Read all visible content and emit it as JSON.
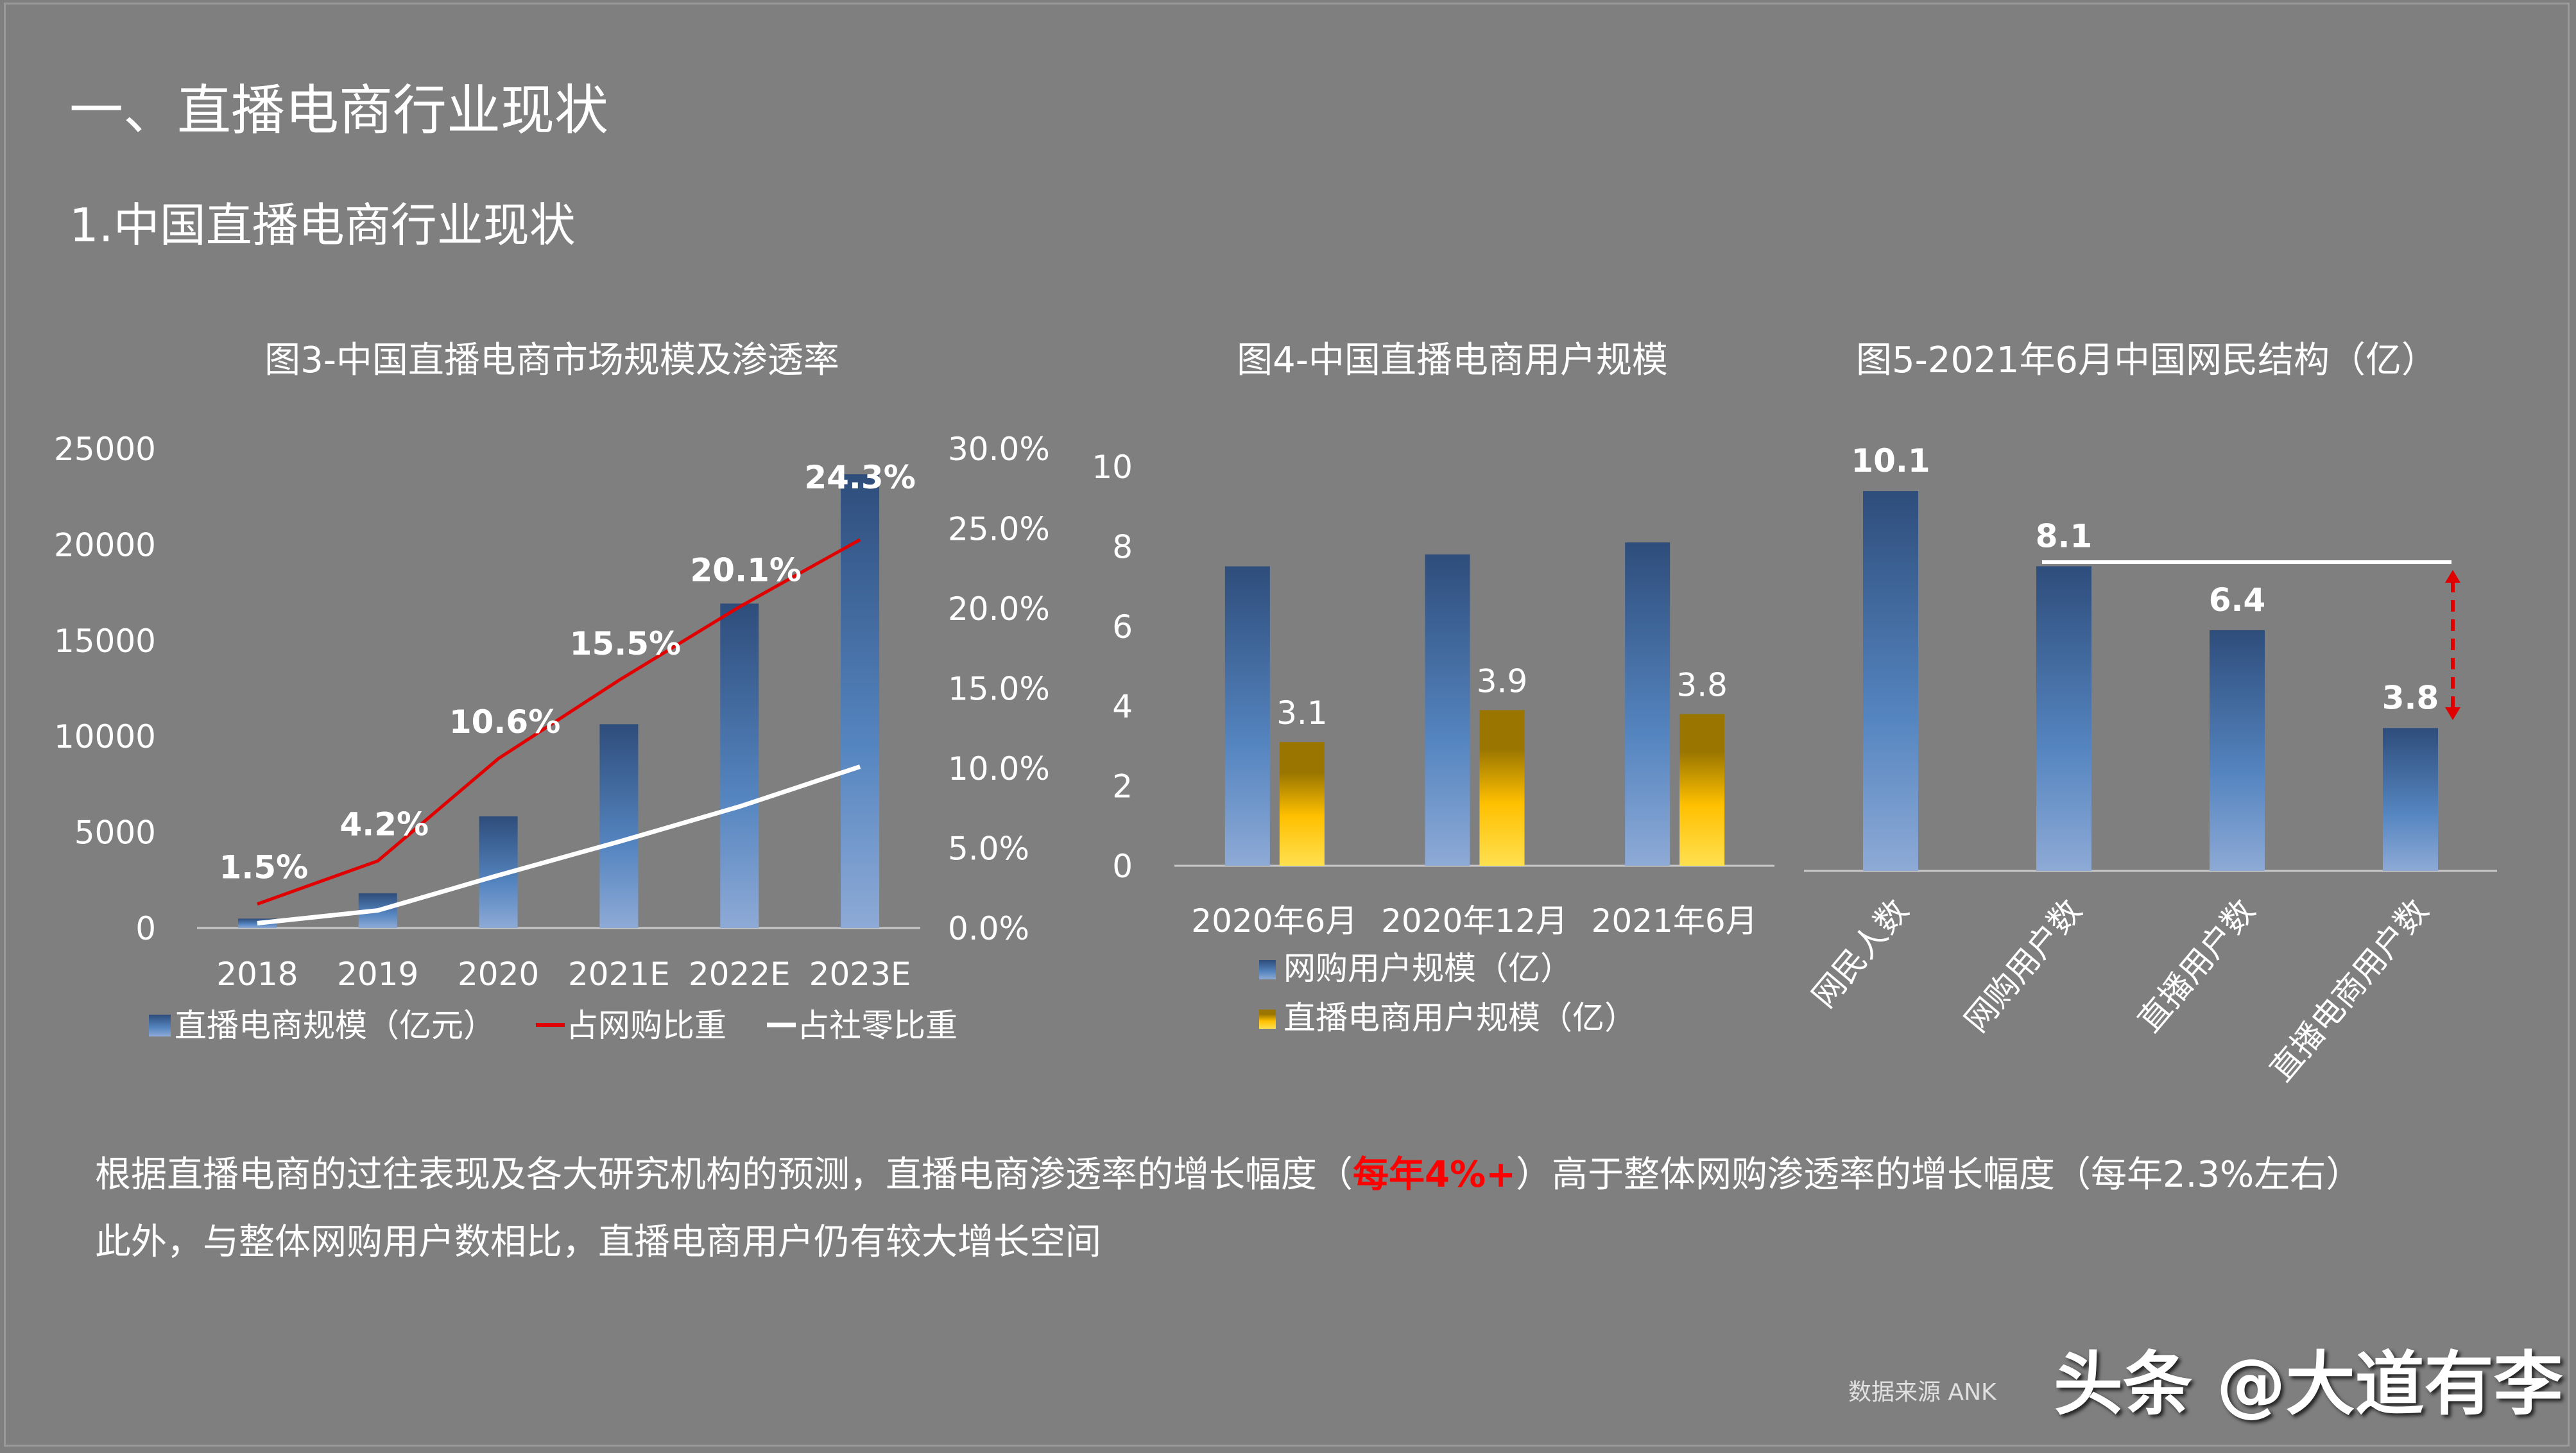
{
  "title": "一、直播电商行业现状",
  "subtitle": "1.中国直播电商行业现状",
  "paragraph": {
    "line1_a": "根据直播电商的过往表现及各大研究机构的预测，直播电商渗透率的增长幅度（",
    "line1_highlight": "每年4%+",
    "line1_b": "）高于整体网购渗透率的增长幅度（每年2.3%左右）",
    "line2": "此外，与整体网购用户数相比，直播电商用户仍有较大增长空间"
  },
  "watermark": "头条 @大道有李",
  "watermark_sub": "数据来源 ANK",
  "colors": {
    "background": "#7f7f7f",
    "bar_blue_top": "#2e4d7b",
    "bar_blue_bottom": "#8eaad6",
    "bar_gold_top": "#9a7600",
    "bar_gold_bottom": "#ffe050",
    "line_red": "#e00000",
    "line_white": "#ffffff",
    "highlight": "#ff0000"
  },
  "chart_data": [
    {
      "type": "bar+line",
      "title": "图3-中国直播电商市场规模及渗透率",
      "categories": [
        "2018",
        "2019",
        "2020",
        "2021E",
        "2022E",
        "2023E"
      ],
      "y_left": {
        "ylim": [
          0,
          25000
        ],
        "ticks": [
          "0",
          "5000",
          "10000",
          "15000",
          "20000",
          "25000"
        ]
      },
      "y_right": {
        "ylim": [
          0,
          30
        ],
        "ticks": [
          "0.0%",
          "5.0%",
          "10.0%",
          "15.0%",
          "20.0%",
          "25.0%",
          "30.0%"
        ]
      },
      "series": [
        {
          "name": "直播电商规模（亿元）",
          "type": "bar",
          "axis": "left",
          "values": [
            490,
            1810,
            5820,
            10630,
            16920,
            23660
          ]
        },
        {
          "name": "占网购比重",
          "type": "line",
          "axis": "right",
          "values": [
            1.5,
            4.2,
            10.6,
            15.5,
            20.1,
            24.3
          ],
          "labels": [
            "1.5%",
            "4.2%",
            "10.6%",
            "15.5%",
            "20.1%",
            "24.3%"
          ]
        },
        {
          "name": "占社零比重",
          "type": "line",
          "axis": "right",
          "values": [
            0.3,
            1.1,
            3.3,
            5.4,
            7.6,
            10.1
          ]
        }
      ],
      "legend": "bottom"
    },
    {
      "type": "bar",
      "title": "图4-中国直播电商用户规模",
      "categories": [
        "2020年6月",
        "2020年12月",
        "2021年6月"
      ],
      "ylim": [
        0,
        10
      ],
      "ticks": [
        "0",
        "2",
        "4",
        "6",
        "8",
        "10"
      ],
      "series": [
        {
          "name": "网购用户规模（亿）",
          "values": [
            7.5,
            7.8,
            8.1
          ]
        },
        {
          "name": "直播电商用户规模（亿）",
          "values": [
            3.1,
            3.9,
            3.8
          ],
          "labels": [
            "3.1",
            "3.9",
            "3.8"
          ]
        }
      ],
      "legend": "bottom"
    },
    {
      "type": "bar",
      "title": "图5-2021年6月中国网民结构（亿）",
      "categories": [
        "网民人数",
        "网购用户数",
        "直播用户数",
        "直播电商用户数"
      ],
      "values": [
        10.1,
        8.1,
        6.4,
        3.8
      ],
      "labels": [
        "10.1",
        "8.1",
        "6.4",
        "3.8"
      ]
    }
  ]
}
